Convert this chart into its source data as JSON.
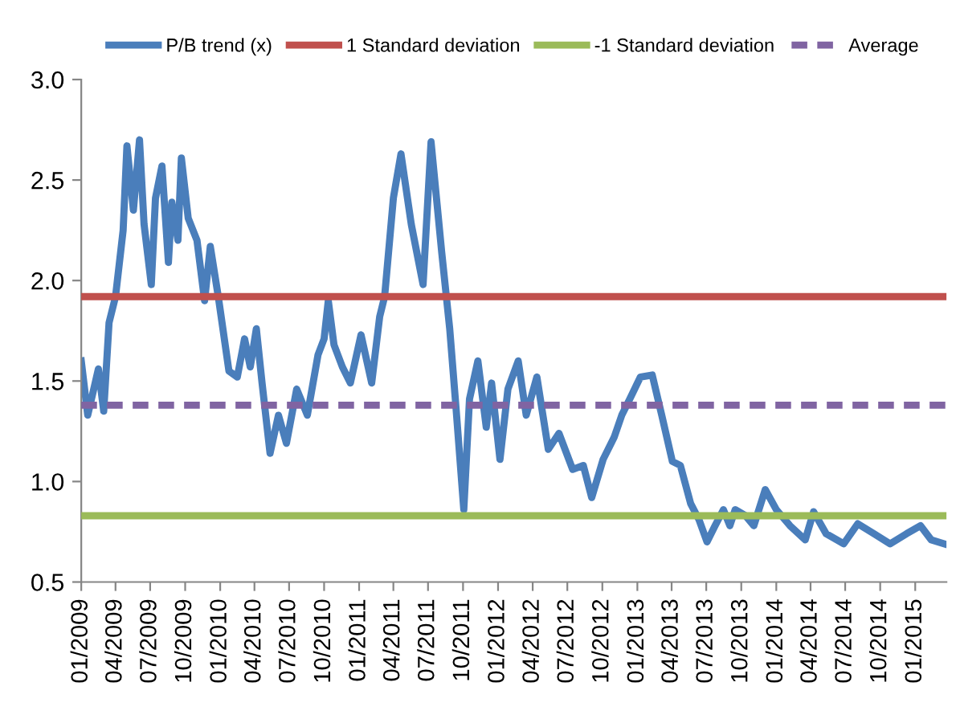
{
  "chart_data": {
    "type": "line",
    "x": [
      "2009-01-01",
      "2009-01-18",
      "2009-02-15",
      "2009-03-01",
      "2009-03-15",
      "2009-04-01",
      "2009-04-21",
      "2009-05-01",
      "2009-05-18",
      "2009-06-03",
      "2009-06-15",
      "2009-07-04",
      "2009-07-15",
      "2009-08-01",
      "2009-08-18",
      "2009-08-27",
      "2009-09-12",
      "2009-09-21",
      "2009-10-09",
      "2009-11-01",
      "2009-11-21",
      "2009-12-06",
      "2009-12-27",
      "2010-01-24",
      "2010-02-15",
      "2010-03-06",
      "2010-03-21",
      "2010-04-06",
      "2010-04-21",
      "2010-05-12",
      "2010-06-03",
      "2010-06-24",
      "2010-07-21",
      "2010-08-18",
      "2010-09-15",
      "2010-10-01",
      "2010-10-12",
      "2010-10-27",
      "2010-11-18",
      "2010-12-09",
      "2011-01-06",
      "2011-02-03",
      "2011-02-24",
      "2011-03-09",
      "2011-04-01",
      "2011-04-21",
      "2011-05-18",
      "2011-06-18",
      "2011-07-09",
      "2011-08-06",
      "2011-08-27",
      "2011-09-12",
      "2011-10-03",
      "2011-10-18",
      "2011-11-09",
      "2011-12-01",
      "2011-12-15",
      "2012-01-06",
      "2012-01-27",
      "2012-02-23",
      "2012-03-15",
      "2012-04-12",
      "2012-05-12",
      "2012-06-09",
      "2012-07-15",
      "2012-08-12",
      "2012-09-03",
      "2012-10-03",
      "2012-11-01",
      "2012-11-21",
      "2012-12-12",
      "2013-01-09",
      "2013-02-09",
      "2013-03-06",
      "2013-04-03",
      "2013-04-24",
      "2013-05-21",
      "2013-06-12",
      "2013-07-03",
      "2013-07-24",
      "2013-08-15",
      "2013-09-01",
      "2013-09-15",
      "2013-10-12",
      "2013-11-03",
      "2013-12-03",
      "2014-01-01",
      "2014-02-06",
      "2014-03-18",
      "2014-04-09",
      "2014-05-12",
      "2014-06-27",
      "2014-08-03",
      "2014-09-15",
      "2014-10-27",
      "2014-12-09",
      "2015-01-15",
      "2015-02-12",
      "2015-03-18"
    ],
    "series": [
      {
        "name": "P/B trend (x)",
        "color": "#4a7ebb",
        "values": [
          1.6,
          1.33,
          1.56,
          1.35,
          1.79,
          1.92,
          2.25,
          2.67,
          2.35,
          2.7,
          2.28,
          1.98,
          2.41,
          2.57,
          2.09,
          2.39,
          2.2,
          2.61,
          2.31,
          2.2,
          1.9,
          2.17,
          1.92,
          1.55,
          1.52,
          1.71,
          1.57,
          1.76,
          1.49,
          1.14,
          1.33,
          1.19,
          1.46,
          1.33,
          1.63,
          1.71,
          1.9,
          1.68,
          1.57,
          1.49,
          1.73,
          1.49,
          1.82,
          1.92,
          2.41,
          2.63,
          2.28,
          1.98,
          2.69,
          2.14,
          1.76,
          1.38,
          0.86,
          1.41,
          1.6,
          1.27,
          1.49,
          1.11,
          1.46,
          1.6,
          1.33,
          1.52,
          1.16,
          1.24,
          1.06,
          1.08,
          0.92,
          1.11,
          1.22,
          1.33,
          1.41,
          1.52,
          1.53,
          1.33,
          1.1,
          1.08,
          0.89,
          0.81,
          0.7,
          0.78,
          0.86,
          0.78,
          0.86,
          0.83,
          0.78,
          0.96,
          0.86,
          0.78,
          0.71,
          0.85,
          0.74,
          0.69,
          0.79,
          0.74,
          0.69,
          0.74,
          0.78,
          0.71,
          0.69
        ]
      }
    ],
    "ref_lines": [
      {
        "axis": "y",
        "value": 1.92,
        "label": "1 Standard deviation",
        "color": "#c0504d"
      },
      {
        "axis": "y",
        "value": 0.83,
        "label": "-1 Standard deviation",
        "color": "#9bbb59"
      },
      {
        "axis": "y",
        "value": 1.38,
        "label": "Average",
        "color": "#8064a2",
        "line_style": "dashed"
      }
    ],
    "xlim": [
      "2009-01-01",
      "2015-03-24"
    ],
    "xticks": [
      {
        "value": "2009-01-01",
        "label": "01/2009"
      },
      {
        "value": "2009-04-01",
        "label": "04/2009"
      },
      {
        "value": "2009-07-01",
        "label": "07/2009"
      },
      {
        "value": "2009-10-01",
        "label": "10/2009"
      },
      {
        "value": "2010-01-01",
        "label": "01/2010"
      },
      {
        "value": "2010-04-01",
        "label": "04/2010"
      },
      {
        "value": "2010-07-01",
        "label": "07/2010"
      },
      {
        "value": "2010-10-01",
        "label": "10/2010"
      },
      {
        "value": "2011-01-01",
        "label": "01/2011"
      },
      {
        "value": "2011-04-01",
        "label": "04/2011"
      },
      {
        "value": "2011-07-01",
        "label": "07/2011"
      },
      {
        "value": "2011-10-01",
        "label": "10/2011"
      },
      {
        "value": "2012-01-01",
        "label": "01/2012"
      },
      {
        "value": "2012-04-01",
        "label": "04/2012"
      },
      {
        "value": "2012-07-01",
        "label": "07/2012"
      },
      {
        "value": "2012-10-01",
        "label": "10/2012"
      },
      {
        "value": "2013-01-01",
        "label": "01/2013"
      },
      {
        "value": "2013-04-01",
        "label": "04/2013"
      },
      {
        "value": "2013-07-01",
        "label": "07/2013"
      },
      {
        "value": "2013-10-01",
        "label": "10/2013"
      },
      {
        "value": "2014-01-01",
        "label": "01/2014"
      },
      {
        "value": "2014-04-01",
        "label": "04/2014"
      },
      {
        "value": "2014-07-01",
        "label": "07/2014"
      },
      {
        "value": "2014-10-01",
        "label": "10/2014"
      },
      {
        "value": "2015-01-01",
        "label": "01/2015"
      }
    ],
    "ylim": [
      0.5,
      3.0
    ],
    "yticks": [
      {
        "value": 0.5,
        "label": "0.5"
      },
      {
        "value": 1.0,
        "label": "1.0"
      },
      {
        "value": 1.5,
        "label": "1.5"
      },
      {
        "value": 2.0,
        "label": "2.0"
      },
      {
        "value": 2.5,
        "label": "2.5"
      },
      {
        "value": 3.0,
        "label": "3.0"
      }
    ],
    "grid": false,
    "legend": "top",
    "marker": "none",
    "line_style": "solid"
  }
}
